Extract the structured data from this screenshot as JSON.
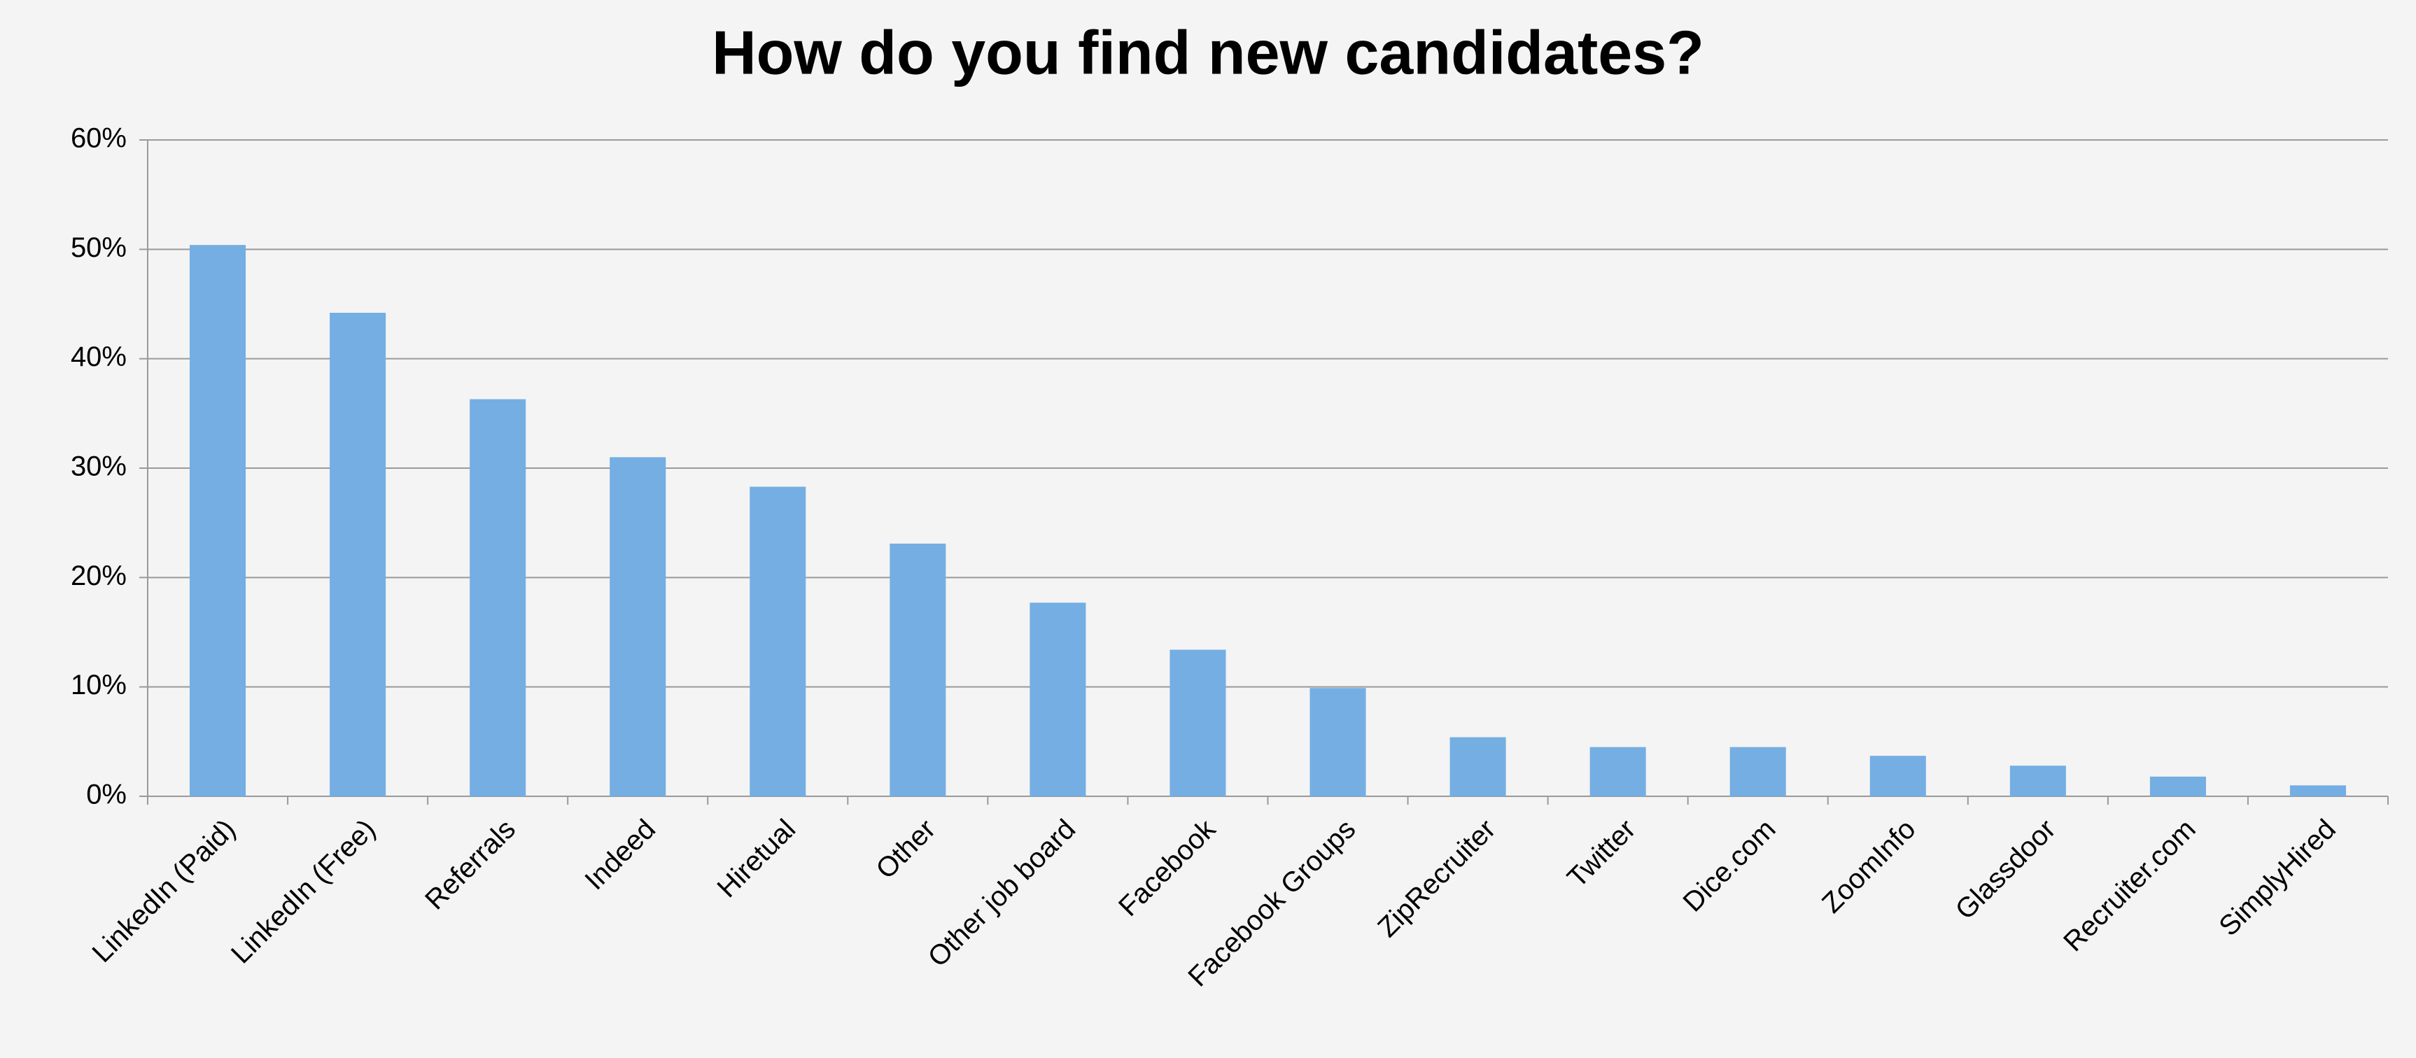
{
  "chart_data": {
    "type": "bar",
    "title": "How do you find new candidates?",
    "categories": [
      "LinkedIn (Paid)",
      "LinkedIn (Free)",
      "Referrals",
      "Indeed",
      "Hiretual",
      "Other",
      "Other job board",
      "Facebook",
      "Facebook Groups",
      "ZipRecruiter",
      "Twitter",
      "Dice.com",
      "ZoomInfo",
      "Glassdoor",
      "Recruiter.com",
      "SimplyHired"
    ],
    "values": [
      50.4,
      44.2,
      36.3,
      31.0,
      28.3,
      23.1,
      17.7,
      13.4,
      9.9,
      5.4,
      4.5,
      4.5,
      3.7,
      2.8,
      1.8,
      1.0
    ],
    "color": "#74aee3",
    "ylim": [
      0,
      60
    ],
    "yticks": [
      {
        "value": 0,
        "label": "0%"
      },
      {
        "value": 10,
        "label": "10%"
      },
      {
        "value": 20,
        "label": "20%"
      },
      {
        "value": 30,
        "label": "30%"
      },
      {
        "value": 40,
        "label": "40%"
      },
      {
        "value": 50,
        "label": "50%"
      },
      {
        "value": 60,
        "label": "60%"
      }
    ],
    "grid": true
  }
}
